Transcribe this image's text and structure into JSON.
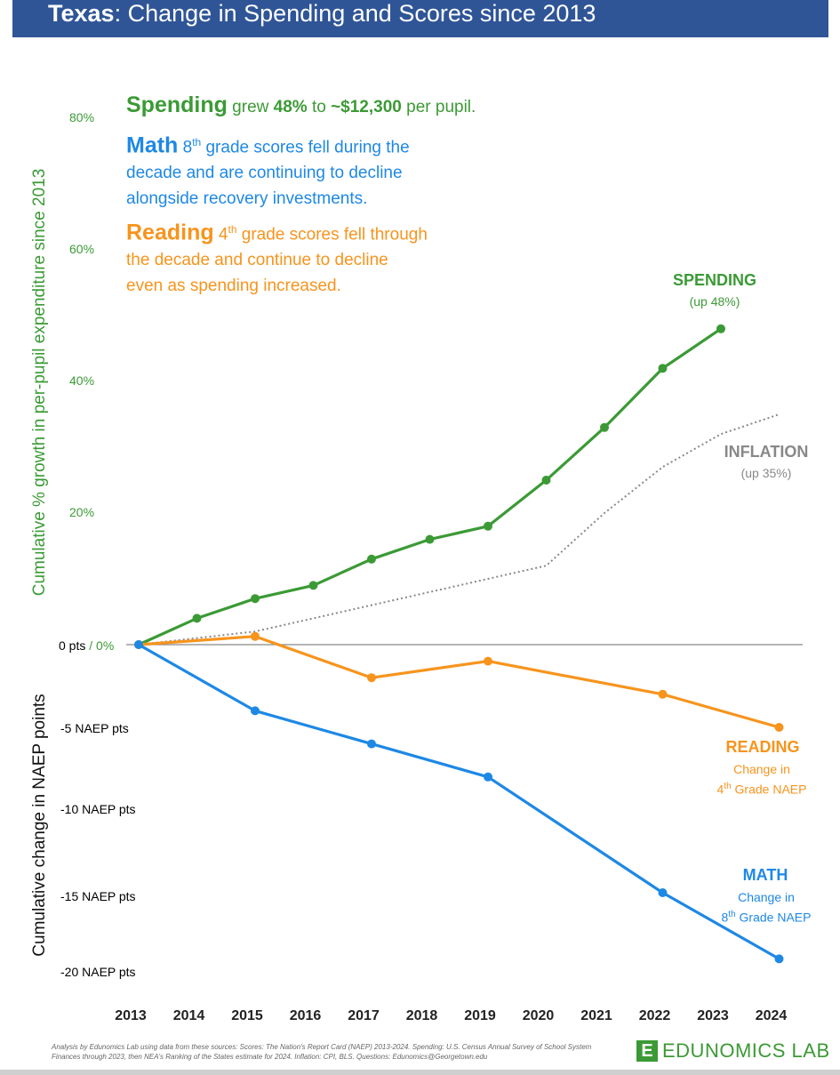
{
  "header": {
    "state": "Texas",
    "title_rest": ": Change in Spending and Scores since 2013"
  },
  "annotations": {
    "spending": {
      "head": "Spending",
      "p1": " grew ",
      "pct": "48%",
      "p2": " to ",
      "amount": "~$12,300",
      "p3": " per pupil."
    },
    "math": {
      "head": "Math",
      "grade": "8",
      "sup": "th",
      "line1": " grade scores fell during the",
      "line2": "decade and are continuing to decline",
      "line3": "alongside recovery investments."
    },
    "reading": {
      "head": "Reading",
      "grade": "4",
      "sup": "th",
      "line1": " grade scores fell through",
      "line2": "the decade and continue to decline",
      "line3": "even as spending increased."
    }
  },
  "axes": {
    "top_label": "Cumulative % growth in per-pupil expenditure since 2013",
    "bottom_label": "Cumulative change in NAEP points",
    "top_ticks": [
      "80%",
      "60%",
      "40%",
      "20%"
    ],
    "zero_pts": "0 pts",
    "zero_sep": " / ",
    "zero_pct": "0%",
    "bottom_ticks": [
      "-5 NAEP pts",
      "-10 NAEP pts",
      "-15 NAEP pts",
      "-20 NAEP pts"
    ]
  },
  "labels": {
    "spending": {
      "name": "SPENDING",
      "sub": "(up 48%)"
    },
    "inflation": {
      "name": "INFLATION",
      "sub": "(up 35%)"
    },
    "reading": {
      "name": "READING",
      "sub1": "Change in",
      "grade": "4",
      "sup": "th",
      "sub2": " Grade NAEP"
    },
    "math": {
      "name": "MATH",
      "sub1": "Change in",
      "grade": "8",
      "sup": "th",
      "sub2": " Grade NAEP"
    }
  },
  "footer": {
    "text": "Analysis by Edunomics Lab using data from these sources: Scores: The Nation's Report Card (NAEP) 2013-2024. Spending: U.S. Census Annual Survey of School System Finances through 2023, then NEA's Ranking of the States estimate for 2024. Inflation: CPI, BLS. Questions: Edunomics@Georgetown.edu",
    "logo_mark": "E",
    "logo_text": "EDUNOMICS LAB"
  },
  "colors": {
    "spending": "#3b9a35",
    "inflation": "#888888",
    "reading": "#f7941d",
    "math": "#1e88e5",
    "banner": "#2f5597"
  },
  "chart_data": {
    "type": "line",
    "title": "Texas: Change in Spending and Scores since 2013",
    "x": [
      2013,
      2014,
      2015,
      2016,
      2017,
      2018,
      2019,
      2020,
      2021,
      2022,
      2023,
      2024
    ],
    "top_panel": {
      "ylabel": "Cumulative % growth in per-pupil expenditure since 2013",
      "ylim": [
        0,
        80
      ],
      "series": [
        {
          "name": "Spending",
          "x": [
            2013,
            2014,
            2015,
            2016,
            2017,
            2018,
            2019,
            2020,
            2021,
            2022,
            2023
          ],
          "values": [
            0,
            4,
            7,
            9,
            13,
            16,
            18,
            25,
            33,
            42,
            48
          ]
        },
        {
          "name": "Inflation",
          "x": [
            2013,
            2014,
            2015,
            2016,
            2017,
            2018,
            2019,
            2020,
            2021,
            2022,
            2023,
            2024
          ],
          "values": [
            0,
            1,
            2,
            4,
            6,
            8,
            10,
            12,
            20,
            27,
            32,
            35
          ]
        }
      ]
    },
    "bottom_panel": {
      "ylabel": "Cumulative change in NAEP points",
      "ylim": [
        -20,
        0
      ],
      "series": [
        {
          "name": "Reading (4th Grade NAEP)",
          "x": [
            2013,
            2015,
            2017,
            2019,
            2022,
            2024
          ],
          "values": [
            0,
            0.5,
            -2,
            -1,
            -3,
            -5
          ]
        },
        {
          "name": "Math (8th Grade NAEP)",
          "x": [
            2013,
            2015,
            2017,
            2019,
            2022,
            2024
          ],
          "values": [
            0,
            -4,
            -6,
            -8,
            -15,
            -19
          ]
        }
      ]
    }
  }
}
